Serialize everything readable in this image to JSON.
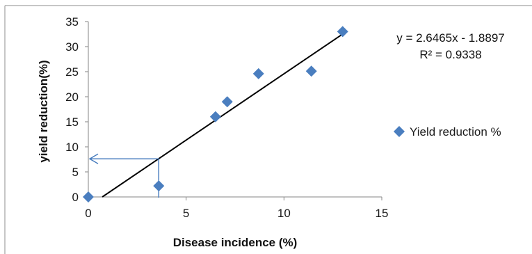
{
  "chart_data": {
    "type": "scatter",
    "xlabel": "Disease incidence (%)",
    "ylabel": "yield reduction(%)",
    "xlim": [
      0,
      15
    ],
    "ylim": [
      0,
      35
    ],
    "x_ticks": [
      "0",
      "5",
      "10",
      "15"
    ],
    "y_ticks": [
      "0",
      "5",
      "10",
      "15",
      "20",
      "25",
      "30",
      "35"
    ],
    "grid": false,
    "legend_position": "right",
    "series": [
      {
        "name": "Yield reduction %",
        "color": "#4a7ebf",
        "marker": "diamond",
        "points": [
          {
            "x": 0,
            "y": 0
          },
          {
            "x": 3.6,
            "y": 2.2
          },
          {
            "x": 6.5,
            "y": 16
          },
          {
            "x": 7.1,
            "y": 19
          },
          {
            "x": 8.7,
            "y": 24.6
          },
          {
            "x": 11.4,
            "y": 25.1
          },
          {
            "x": 13,
            "y": 33
          }
        ]
      }
    ],
    "trendline": {
      "slope": 2.6465,
      "intercept": -1.8897,
      "equation": "y = 2.6465x - 1.8897",
      "r_squared": "R² = 0.9338",
      "color": "#000000"
    },
    "annotation_arrow": {
      "x": 3.6,
      "y": 7.6,
      "color": "#4a7ebf"
    }
  }
}
